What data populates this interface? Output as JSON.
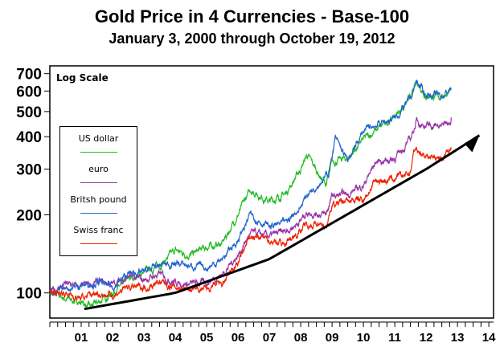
{
  "chart_data": {
    "type": "line",
    "title": "Gold Price in 4 Currencies - Base-100",
    "subtitle": "January 3, 2000 through October 19, 2012",
    "annotation": "Log Scale",
    "y_scale": "log",
    "ylim": [
      80,
      750
    ],
    "xlim": [
      2000,
      2014.15
    ],
    "y_ticks": [
      100,
      200,
      300,
      400,
      500,
      600,
      700
    ],
    "x_tick_labels": [
      "01",
      "02",
      "03",
      "04",
      "05",
      "06",
      "07",
      "08",
      "09",
      "10",
      "11",
      "12",
      "13",
      "14"
    ],
    "legend_position": "left",
    "grid": false,
    "series": [
      {
        "name": "US dollar",
        "color": "#22bb22",
        "x": [
          2000,
          2000.5,
          2001,
          2001.3,
          2002,
          2002.5,
          2003,
          2003.5,
          2004,
          2004.5,
          2005,
          2005.5,
          2006,
          2006.4,
          2007,
          2007.5,
          2008,
          2008.2,
          2008.8,
          2009,
          2009.5,
          2010,
          2010.5,
          2011,
          2011.5,
          2011.7,
          2012,
          2012.5,
          2012.8
        ],
        "values": [
          100,
          95,
          92,
          88,
          100,
          112,
          120,
          128,
          145,
          140,
          150,
          155,
          200,
          250,
          225,
          240,
          300,
          340,
          260,
          320,
          330,
          390,
          430,
          480,
          560,
          650,
          580,
          570,
          610
        ]
      },
      {
        "name": "euro",
        "color": "#9933aa",
        "x": [
          2000,
          2000.5,
          2001,
          2001.5,
          2002,
          2002.5,
          2003,
          2003.5,
          2004,
          2004.5,
          2005,
          2005.5,
          2006,
          2006.4,
          2007,
          2007.5,
          2008,
          2008.2,
          2008.8,
          2009,
          2009.5,
          2010,
          2010.4,
          2011,
          2011.5,
          2011.7,
          2012,
          2012.5,
          2012.8
        ],
        "values": [
          100,
          108,
          105,
          110,
          108,
          115,
          112,
          118,
          110,
          108,
          110,
          118,
          140,
          170,
          165,
          172,
          190,
          205,
          200,
          235,
          240,
          260,
          320,
          330,
          390,
          460,
          440,
          440,
          475
        ]
      },
      {
        "name": "Britsh pound",
        "color": "#2266cc",
        "x": [
          2000,
          2000.5,
          2001,
          2001.5,
          2002,
          2002.5,
          2003,
          2003.5,
          2004,
          2004.5,
          2005,
          2005.5,
          2006,
          2006.4,
          2007,
          2007.5,
          2008,
          2008.2,
          2008.9,
          2009.1,
          2009.5,
          2010,
          2010.5,
          2011,
          2011.5,
          2011.7,
          2012,
          2012.5,
          2012.8
        ],
        "values": [
          100,
          104,
          107,
          110,
          105,
          118,
          120,
          128,
          130,
          127,
          125,
          135,
          160,
          200,
          180,
          185,
          215,
          240,
          290,
          395,
          320,
          420,
          450,
          470,
          560,
          650,
          580,
          575,
          610
        ]
      },
      {
        "name": "Swiss franc",
        "color": "#ee2200",
        "x": [
          2000,
          2000.5,
          2001,
          2001.5,
          2002,
          2002.5,
          2003,
          2003.5,
          2004,
          2004.5,
          2005,
          2005.5,
          2006,
          2006.4,
          2007,
          2007.5,
          2008,
          2008.2,
          2008.8,
          2009,
          2009.5,
          2010,
          2010.4,
          2011,
          2011.5,
          2011.6,
          2012,
          2012.5,
          2012.8
        ],
        "values": [
          100,
          100,
          95,
          100,
          98,
          105,
          105,
          110,
          105,
          103,
          103,
          108,
          130,
          165,
          160,
          155,
          175,
          185,
          180,
          220,
          225,
          230,
          270,
          275,
          290,
          355,
          340,
          330,
          360
        ]
      }
    ],
    "trend_arrow": {
      "color": "#000000",
      "x": [
        2001.1,
        2004,
        2007,
        2010,
        2012,
        2013.7
      ],
      "values": [
        86.7,
        100,
        135,
        218,
        300,
        405
      ]
    }
  }
}
